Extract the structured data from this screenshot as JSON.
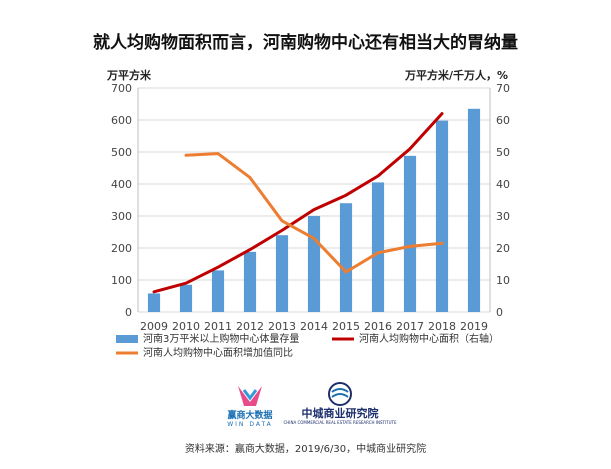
{
  "chart_data": {
    "type": "bar",
    "title": "就人均购物面积而言，河南购物中心还有相当大的胃纳量",
    "y_left_unit": "万平方米",
    "y_right_unit": "万平方米/千万人，%",
    "x": [
      "2009",
      "2010",
      "2011",
      "2012",
      "2013",
      "2014",
      "2015",
      "2016",
      "2017",
      "2018",
      "2019"
    ],
    "ylim_left": [
      0,
      700
    ],
    "ylim_right": [
      0,
      70
    ],
    "y_left_ticks": [
      "0",
      "100",
      "200",
      "300",
      "400",
      "500",
      "600",
      "700"
    ],
    "y_right_ticks": [
      "0",
      "10",
      "20",
      "30",
      "40",
      "50",
      "60",
      "70"
    ],
    "grid": true,
    "legend_position": "bottom",
    "series": [
      {
        "name": "河南3万平米以上购物中心体量存量",
        "kind": "bar",
        "axis": "left",
        "color": "#5b9bd5",
        "values": [
          58,
          85,
          130,
          188,
          240,
          300,
          340,
          405,
          488,
          598,
          635
        ]
      },
      {
        "name": "河南人均购物中心面积（右轴）",
        "kind": "line",
        "axis": "right",
        "color": "#c00000",
        "values": [
          6.3,
          9.0,
          14.0,
          19.5,
          25.5,
          32.0,
          36.5,
          42.5,
          51.0,
          62.0,
          null
        ]
      },
      {
        "name": "河南人均购物中心面积增加值同比",
        "kind": "line",
        "axis": "right",
        "color": "#ed7d31",
        "values": [
          null,
          49.0,
          49.5,
          42.0,
          28.5,
          23.0,
          12.5,
          18.5,
          20.5,
          21.5,
          null
        ]
      }
    ]
  },
  "logos": {
    "left_name": "赢商大数据",
    "left_sub": "WIN DATA",
    "right_name": "中城商业研究院",
    "right_sub": "CHINA COMMERCIAL REAL ESTATE RESEARCH INSTITUTE"
  },
  "source": "资料来源：赢商大数据，2019/6/30，中城商业研究院",
  "colors": {
    "bar": "#5b9bd5",
    "line_red": "#c00000",
    "line_orange": "#ed7d31",
    "grid": "#d9d9d9"
  }
}
